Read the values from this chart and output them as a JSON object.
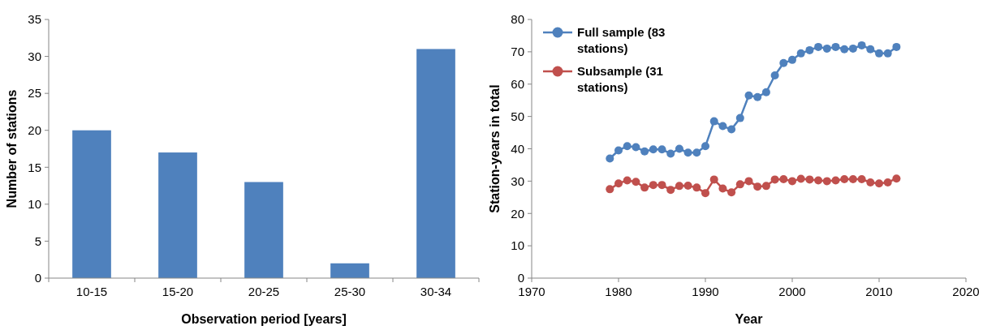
{
  "chart_data": [
    {
      "type": "bar",
      "categories": [
        "10-15",
        "15-20",
        "20-25",
        "25-30",
        "30-34"
      ],
      "values": [
        20,
        17,
        13,
        2,
        31
      ],
      "color": "#4f81bd",
      "xlabel": "Observation period [years]",
      "ylabel": "Number of stations",
      "ylim": [
        0,
        35
      ],
      "yticks": [
        0,
        5,
        10,
        15,
        20,
        25,
        30,
        35
      ],
      "grid": false
    },
    {
      "type": "line",
      "x": [
        1979,
        1980,
        1981,
        1982,
        1983,
        1984,
        1985,
        1986,
        1987,
        1988,
        1989,
        1990,
        1991,
        1992,
        1993,
        1994,
        1995,
        1996,
        1997,
        1998,
        1999,
        2000,
        2001,
        2002,
        2003,
        2004,
        2005,
        2006,
        2007,
        2008,
        2009,
        2010,
        2011,
        2012
      ],
      "xlabel": "Year",
      "ylabel": "Station-years in total",
      "xlim": [
        1970,
        2020
      ],
      "xticks": [
        1970,
        1980,
        1990,
        2000,
        2010,
        2020
      ],
      "ylim": [
        0,
        80
      ],
      "yticks": [
        0,
        10,
        20,
        30,
        40,
        50,
        60,
        70,
        80
      ],
      "grid": false,
      "legend": "top left",
      "marker": "circle",
      "line_style": "solid",
      "series": [
        {
          "name": "Full sample (83 stations)",
          "color": "#4f81bd",
          "values": [
            37,
            39.5,
            40.8,
            40.5,
            39.2,
            39.8,
            39.8,
            38.5,
            40,
            38.8,
            38.8,
            40.8,
            48.5,
            47,
            46,
            49.5,
            56.5,
            56,
            57.5,
            62.7,
            66.5,
            67.5,
            69.5,
            70.5,
            71.5,
            71,
            71.5,
            70.8,
            71,
            72,
            70.8,
            69.5,
            69.5,
            71.5
          ]
        },
        {
          "name": "Subsample (31 stations)",
          "color": "#c0504d",
          "values": [
            27.5,
            29.3,
            30.2,
            29.8,
            28,
            28.8,
            28.8,
            27.3,
            28.5,
            28.6,
            28,
            26.3,
            30.5,
            27.7,
            26.5,
            29,
            30,
            28.3,
            28.5,
            30.5,
            30.6,
            30,
            30.7,
            30.5,
            30.2,
            30,
            30.2,
            30.6,
            30.6,
            30.6,
            29.6,
            29.3,
            29.6,
            30.8
          ]
        }
      ]
    }
  ]
}
